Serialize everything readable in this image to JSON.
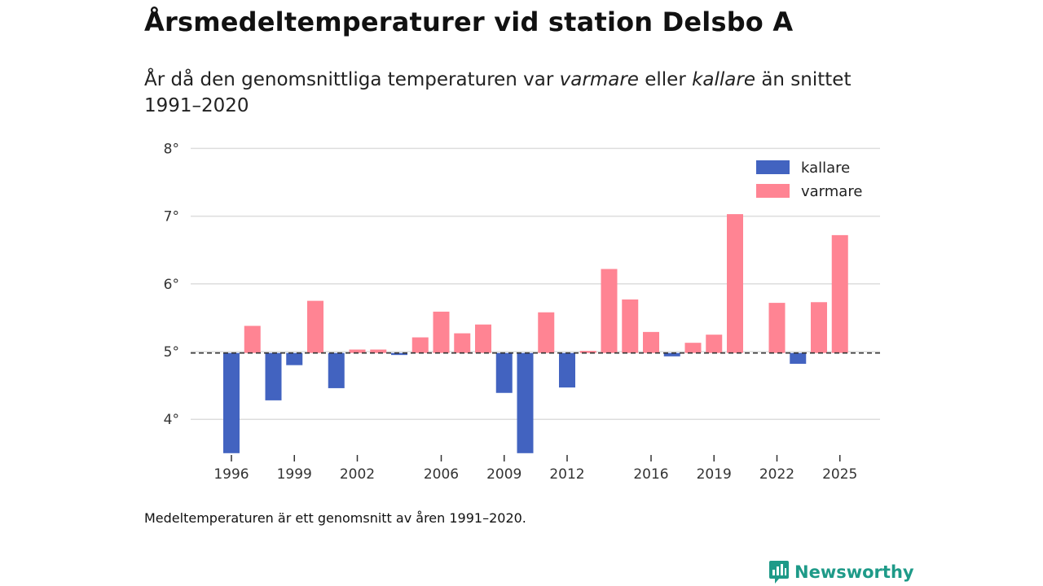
{
  "title": "Årsmedeltemperaturer vid station Delsbo A",
  "subtitle": {
    "prefix": "År då den genomsnittliga temperaturen var ",
    "warm_word": "varmare",
    "middle": " eller ",
    "cold_word": "kallare",
    "suffix": " än snittet 1991–2020"
  },
  "footnote": "Medeltemperaturen är ett genomsnitt av åren 1991–2020.",
  "brand": {
    "name": "Newsworthy",
    "icon": "newsworthy-logo-icon",
    "color": "#1e9a88"
  },
  "colors": {
    "kallare": "#4263c0",
    "varmare": "#ff8493"
  },
  "chart_data": {
    "type": "bar",
    "title": "Årsmedeltemperaturer vid station Delsbo A",
    "baseline": 4.98,
    "ylim": [
      3.5,
      8.0
    ],
    "y_ticks": [
      4,
      5,
      6,
      7,
      8
    ],
    "y_tick_suffix": "°",
    "x_tick_labels": [
      1996,
      1999,
      2002,
      2006,
      2009,
      2012,
      2016,
      2019,
      2022,
      2025
    ],
    "legend": [
      {
        "key": "kallare",
        "label": "kallare"
      },
      {
        "key": "varmare",
        "label": "varmare"
      }
    ],
    "years": [
      1996,
      1997,
      1998,
      1999,
      2000,
      2001,
      2002,
      2003,
      2004,
      2005,
      2006,
      2007,
      2008,
      2009,
      2010,
      2011,
      2012,
      2013,
      2014,
      2015,
      2016,
      2017,
      2018,
      2019,
      2020,
      2021,
      2022,
      2023,
      2024,
      2025
    ],
    "values": [
      3.5,
      5.38,
      4.28,
      4.8,
      5.75,
      4.46,
      5.03,
      5.03,
      4.95,
      5.21,
      5.59,
      5.27,
      5.4,
      4.39,
      3.5,
      5.58,
      4.47,
      5.01,
      6.22,
      5.77,
      5.29,
      4.93,
      5.13,
      5.25,
      7.03,
      null,
      5.72,
      4.82,
      5.73,
      6.72
    ],
    "xlabel": "",
    "ylabel": ""
  }
}
